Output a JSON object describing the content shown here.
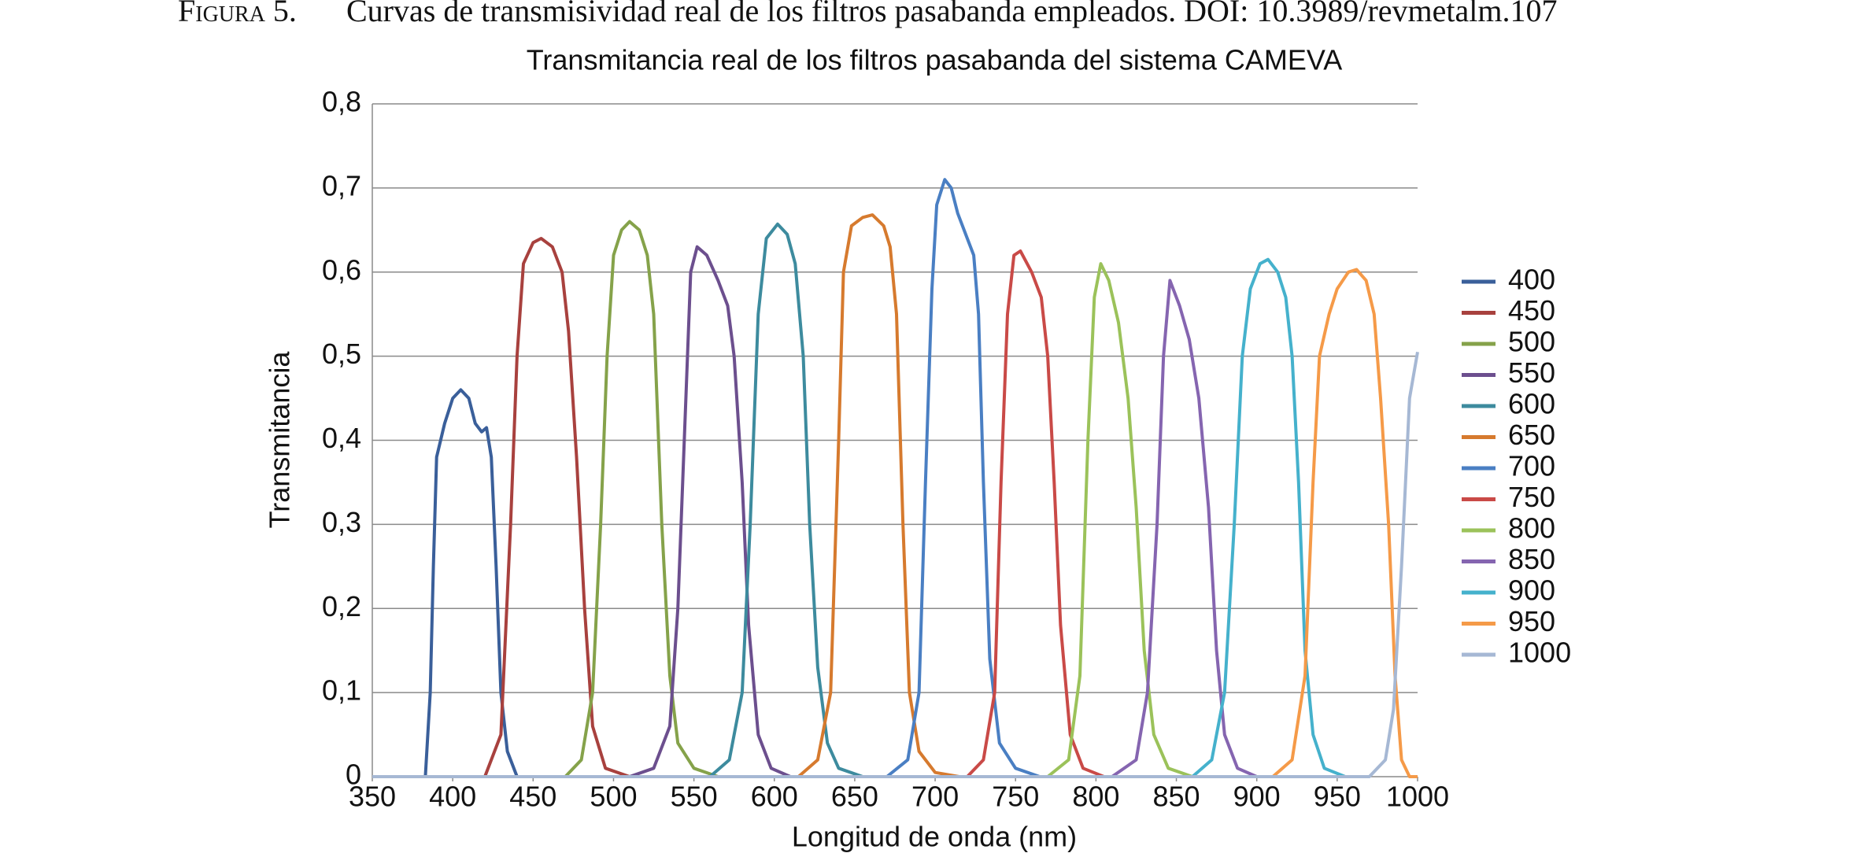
{
  "caption": {
    "label": "Figura 5.",
    "text": "Curvas de transmisividad real de los filtros pasabanda empleados. DOI: 10.3989/revmetalm.107"
  },
  "chart_data": {
    "type": "line",
    "title": "Transmitancia real de los filtros pasabanda del sistema CAMEVA",
    "x_label": "Longitud de onda (nm)",
    "y_label": "Transmitancia",
    "xlim": [
      350,
      1000
    ],
    "xticks": [
      350,
      400,
      450,
      500,
      550,
      600,
      650,
      700,
      750,
      800,
      850,
      900,
      950,
      1000
    ],
    "ylim": [
      0,
      0.8
    ],
    "yticks": [
      {
        "value": 0,
        "label": "0"
      },
      {
        "value": 0.1,
        "label": "0,1"
      },
      {
        "value": 0.2,
        "label": "0,2"
      },
      {
        "value": 0.3,
        "label": "0,3"
      },
      {
        "value": 0.4,
        "label": "0,4"
      },
      {
        "value": 0.5,
        "label": "0,5"
      },
      {
        "value": 0.6,
        "label": "0,6"
      },
      {
        "value": 0.7,
        "label": "0,7"
      },
      {
        "value": 0.8,
        "label": "0,8"
      }
    ],
    "grid": true,
    "legend": "right",
    "series": [
      {
        "name": "400",
        "color": "#3a5f9a",
        "x": [
          350,
          383,
          386,
          388,
          390,
          395,
          400,
          405,
          410,
          414,
          418,
          421,
          424,
          427,
          430,
          434,
          440
        ],
        "values": [
          0,
          0,
          0.1,
          0.25,
          0.38,
          0.42,
          0.45,
          0.46,
          0.45,
          0.42,
          0.41,
          0.415,
          0.38,
          0.25,
          0.1,
          0.03,
          0
        ]
      },
      {
        "name": "450",
        "color": "#a8413e",
        "x": [
          350,
          420,
          430,
          436,
          440,
          444,
          450,
          455,
          462,
          468,
          472,
          477,
          482,
          487,
          495,
          510
        ],
        "values": [
          0,
          0,
          0.05,
          0.3,
          0.5,
          0.61,
          0.635,
          0.64,
          0.63,
          0.6,
          0.53,
          0.38,
          0.2,
          0.06,
          0.01,
          0
        ]
      },
      {
        "name": "500",
        "color": "#85a24a",
        "x": [
          470,
          480,
          487,
          492,
          496,
          500,
          505,
          510,
          516,
          521,
          525,
          530,
          535,
          540,
          550,
          565
        ],
        "values": [
          0,
          0.02,
          0.1,
          0.3,
          0.5,
          0.62,
          0.65,
          0.66,
          0.65,
          0.62,
          0.55,
          0.3,
          0.12,
          0.04,
          0.01,
          0
        ]
      },
      {
        "name": "550",
        "color": "#6c4f8e",
        "x": [
          510,
          525,
          535,
          540,
          545,
          548,
          552,
          558,
          565,
          571,
          575,
          580,
          584,
          590,
          598,
          610
        ],
        "values": [
          0,
          0.01,
          0.06,
          0.2,
          0.45,
          0.6,
          0.63,
          0.62,
          0.59,
          0.56,
          0.5,
          0.35,
          0.18,
          0.05,
          0.01,
          0
        ]
      },
      {
        "name": "600",
        "color": "#3d8b9e",
        "x": [
          560,
          572,
          580,
          585,
          590,
          595,
          602,
          608,
          613,
          618,
          622,
          627,
          633,
          640,
          655
        ],
        "values": [
          0,
          0.02,
          0.1,
          0.3,
          0.55,
          0.64,
          0.657,
          0.645,
          0.61,
          0.5,
          0.3,
          0.13,
          0.04,
          0.01,
          0
        ]
      },
      {
        "name": "650",
        "color": "#d67a2e",
        "x": [
          615,
          627,
          635,
          640,
          643,
          648,
          655,
          661,
          668,
          672,
          676,
          680,
          684,
          690,
          700,
          715
        ],
        "values": [
          0,
          0.02,
          0.1,
          0.4,
          0.6,
          0.655,
          0.665,
          0.668,
          0.655,
          0.63,
          0.55,
          0.3,
          0.1,
          0.03,
          0.005,
          0
        ]
      },
      {
        "name": "700",
        "color": "#4a7fc3",
        "x": [
          670,
          683,
          690,
          694,
          698,
          701,
          706,
          710,
          714,
          720,
          724,
          727,
          730,
          734,
          740,
          750,
          765
        ],
        "values": [
          0,
          0.02,
          0.1,
          0.35,
          0.58,
          0.68,
          0.71,
          0.7,
          0.67,
          0.64,
          0.62,
          0.55,
          0.35,
          0.14,
          0.04,
          0.01,
          0
        ]
      },
      {
        "name": "750",
        "color": "#c94a47",
        "x": [
          720,
          730,
          737,
          741,
          745,
          749,
          753,
          760,
          766,
          770,
          774,
          778,
          784,
          792,
          805
        ],
        "values": [
          0,
          0.02,
          0.1,
          0.35,
          0.55,
          0.62,
          0.625,
          0.6,
          0.57,
          0.5,
          0.35,
          0.18,
          0.05,
          0.01,
          0
        ]
      },
      {
        "name": "800",
        "color": "#9bc25a",
        "x": [
          770,
          783,
          790,
          795,
          799,
          803,
          808,
          814,
          820,
          825,
          830,
          836,
          845,
          860
        ],
        "values": [
          0,
          0.02,
          0.12,
          0.4,
          0.57,
          0.61,
          0.59,
          0.54,
          0.45,
          0.32,
          0.15,
          0.05,
          0.01,
          0
        ]
      },
      {
        "name": "850",
        "color": "#8565b0",
        "x": [
          810,
          825,
          832,
          838,
          842,
          846,
          852,
          858,
          864,
          870,
          875,
          880,
          888,
          900
        ],
        "values": [
          0,
          0.02,
          0.1,
          0.3,
          0.5,
          0.59,
          0.56,
          0.52,
          0.45,
          0.32,
          0.15,
          0.05,
          0.01,
          0
        ]
      },
      {
        "name": "900",
        "color": "#45b1cc",
        "x": [
          860,
          872,
          880,
          886,
          891,
          896,
          902,
          907,
          913,
          918,
          922,
          926,
          930,
          935,
          942,
          955
        ],
        "values": [
          0,
          0.02,
          0.1,
          0.3,
          0.5,
          0.58,
          0.61,
          0.615,
          0.6,
          0.57,
          0.5,
          0.35,
          0.15,
          0.05,
          0.01,
          0
        ]
      },
      {
        "name": "950",
        "color": "#f59a48",
        "x": [
          910,
          922,
          930,
          935,
          939,
          945,
          950,
          957,
          962,
          968,
          973,
          977,
          982,
          986,
          990,
          995,
          1000
        ],
        "values": [
          0,
          0.02,
          0.12,
          0.35,
          0.5,
          0.55,
          0.58,
          0.6,
          0.603,
          0.59,
          0.55,
          0.45,
          0.3,
          0.12,
          0.02,
          0,
          0
        ]
      },
      {
        "name": "1000",
        "color": "#a6b8d4",
        "x": [
          350,
          970,
          980,
          985,
          990,
          995,
          1000
        ],
        "values": [
          0,
          0,
          0.02,
          0.08,
          0.25,
          0.45,
          0.505
        ]
      }
    ]
  }
}
